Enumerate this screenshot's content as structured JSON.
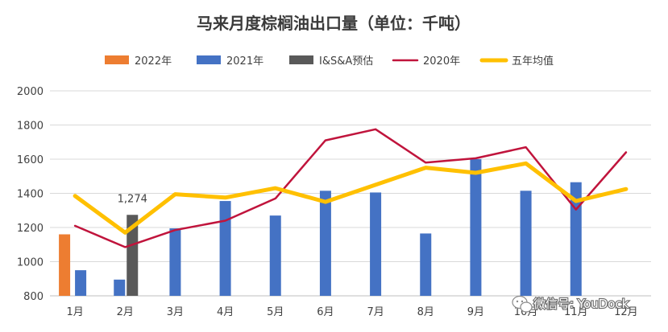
{
  "chart_data": {
    "type": "bar",
    "title": "马来月度棕榈油出口量（单位：千吨）",
    "categories": [
      "1月",
      "2月",
      "3月",
      "4月",
      "5月",
      "6月",
      "7月",
      "8月",
      "9月",
      "10月",
      "11月",
      "12月"
    ],
    "ylim": [
      800,
      2000
    ],
    "yticks": [
      800,
      1000,
      1200,
      1400,
      1600,
      1800,
      2000
    ],
    "grid": true,
    "legend_position": "top",
    "bar_series": [
      {
        "name": "2022年",
        "color": "#ed7d31",
        "values": [
          1160,
          null,
          null,
          null,
          null,
          null,
          null,
          null,
          null,
          null,
          null,
          null
        ]
      },
      {
        "name": "2021年",
        "color": "#4472c4",
        "values": [
          950,
          895,
          1195,
          1355,
          1270,
          1415,
          1405,
          1165,
          1600,
          1415,
          1465,
          null
        ]
      },
      {
        "name": "I&S&A预估",
        "color": "#595959",
        "values": [
          null,
          1274,
          null,
          null,
          null,
          null,
          null,
          null,
          null,
          null,
          null,
          null
        ]
      }
    ],
    "line_series": [
      {
        "name": "2020年",
        "color": "#c0143c",
        "values": [
          1210,
          1085,
          1185,
          1240,
          1370,
          1710,
          1775,
          1580,
          1605,
          1670,
          1305,
          1640
        ]
      },
      {
        "name": "五年均值",
        "color": "#ffc000",
        "values": [
          1385,
          1170,
          1395,
          1375,
          1430,
          1350,
          1450,
          1550,
          1520,
          1575,
          1355,
          1425
        ]
      }
    ],
    "data_labels": [
      {
        "series": "I&S&A预估",
        "category": "2月",
        "text": "1,274"
      }
    ]
  },
  "watermark": {
    "text": "微信号: YouDock",
    "icon": "wechat-icon"
  }
}
